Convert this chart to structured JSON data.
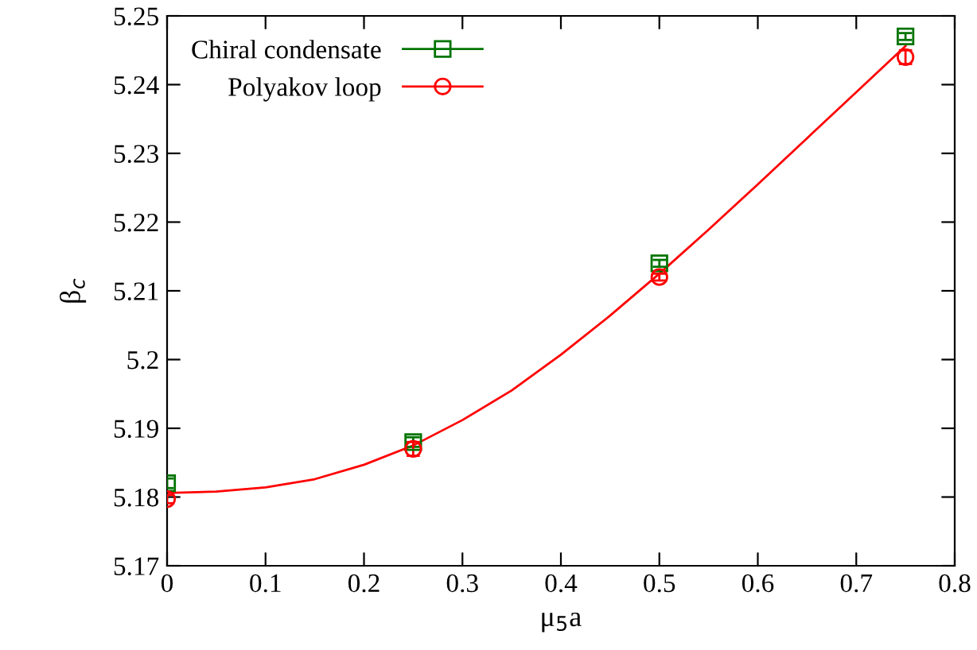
{
  "chart_data": {
    "type": "scatter",
    "xlabel": "μ$_{5}$a",
    "ylabel": "β$_{c}$",
    "xlim": [
      0,
      0.8
    ],
    "ylim": [
      5.17,
      5.25
    ],
    "xticks": [
      0,
      0.1,
      0.2,
      0.3,
      0.4,
      0.5,
      0.6,
      0.7,
      0.8
    ],
    "yticks": [
      5.17,
      5.18,
      5.19,
      5.2,
      5.21,
      5.22,
      5.23,
      5.24,
      5.25
    ],
    "grid": false,
    "legend": "top left",
    "series": [
      {
        "name": "Chiral condensate",
        "color": "#007400",
        "marker": "square",
        "x": [
          0,
          0.25,
          0.5,
          0.75
        ],
        "values": [
          5.182,
          5.188,
          5.214,
          5.247
        ],
        "errors": [
          0.0007,
          0.0007,
          0.0005,
          0.0005
        ]
      },
      {
        "name": "Polyakov loop",
        "color": "#ff0000",
        "marker": "circle",
        "x": [
          0,
          0.25,
          0.5,
          0.75
        ],
        "values": [
          5.1797,
          5.187,
          5.212,
          5.244
        ],
        "errors": [
          0.0006,
          0.001,
          0.0005,
          0.001
        ]
      },
      {
        "type": "line",
        "color": "#ff0000",
        "marker": "none",
        "x": [
          0,
          0.05,
          0.1,
          0.15,
          0.2,
          0.25,
          0.3,
          0.35,
          0.4,
          0.45,
          0.5,
          0.55,
          0.6,
          0.65,
          0.7,
          0.75
        ],
        "values": [
          5.1806,
          5.1808,
          5.1814,
          5.1826,
          5.1847,
          5.1875,
          5.1912,
          5.1955,
          5.2007,
          5.2064,
          5.2125,
          5.2189,
          5.2255,
          5.2322,
          5.2389,
          5.2456
        ]
      }
    ]
  }
}
